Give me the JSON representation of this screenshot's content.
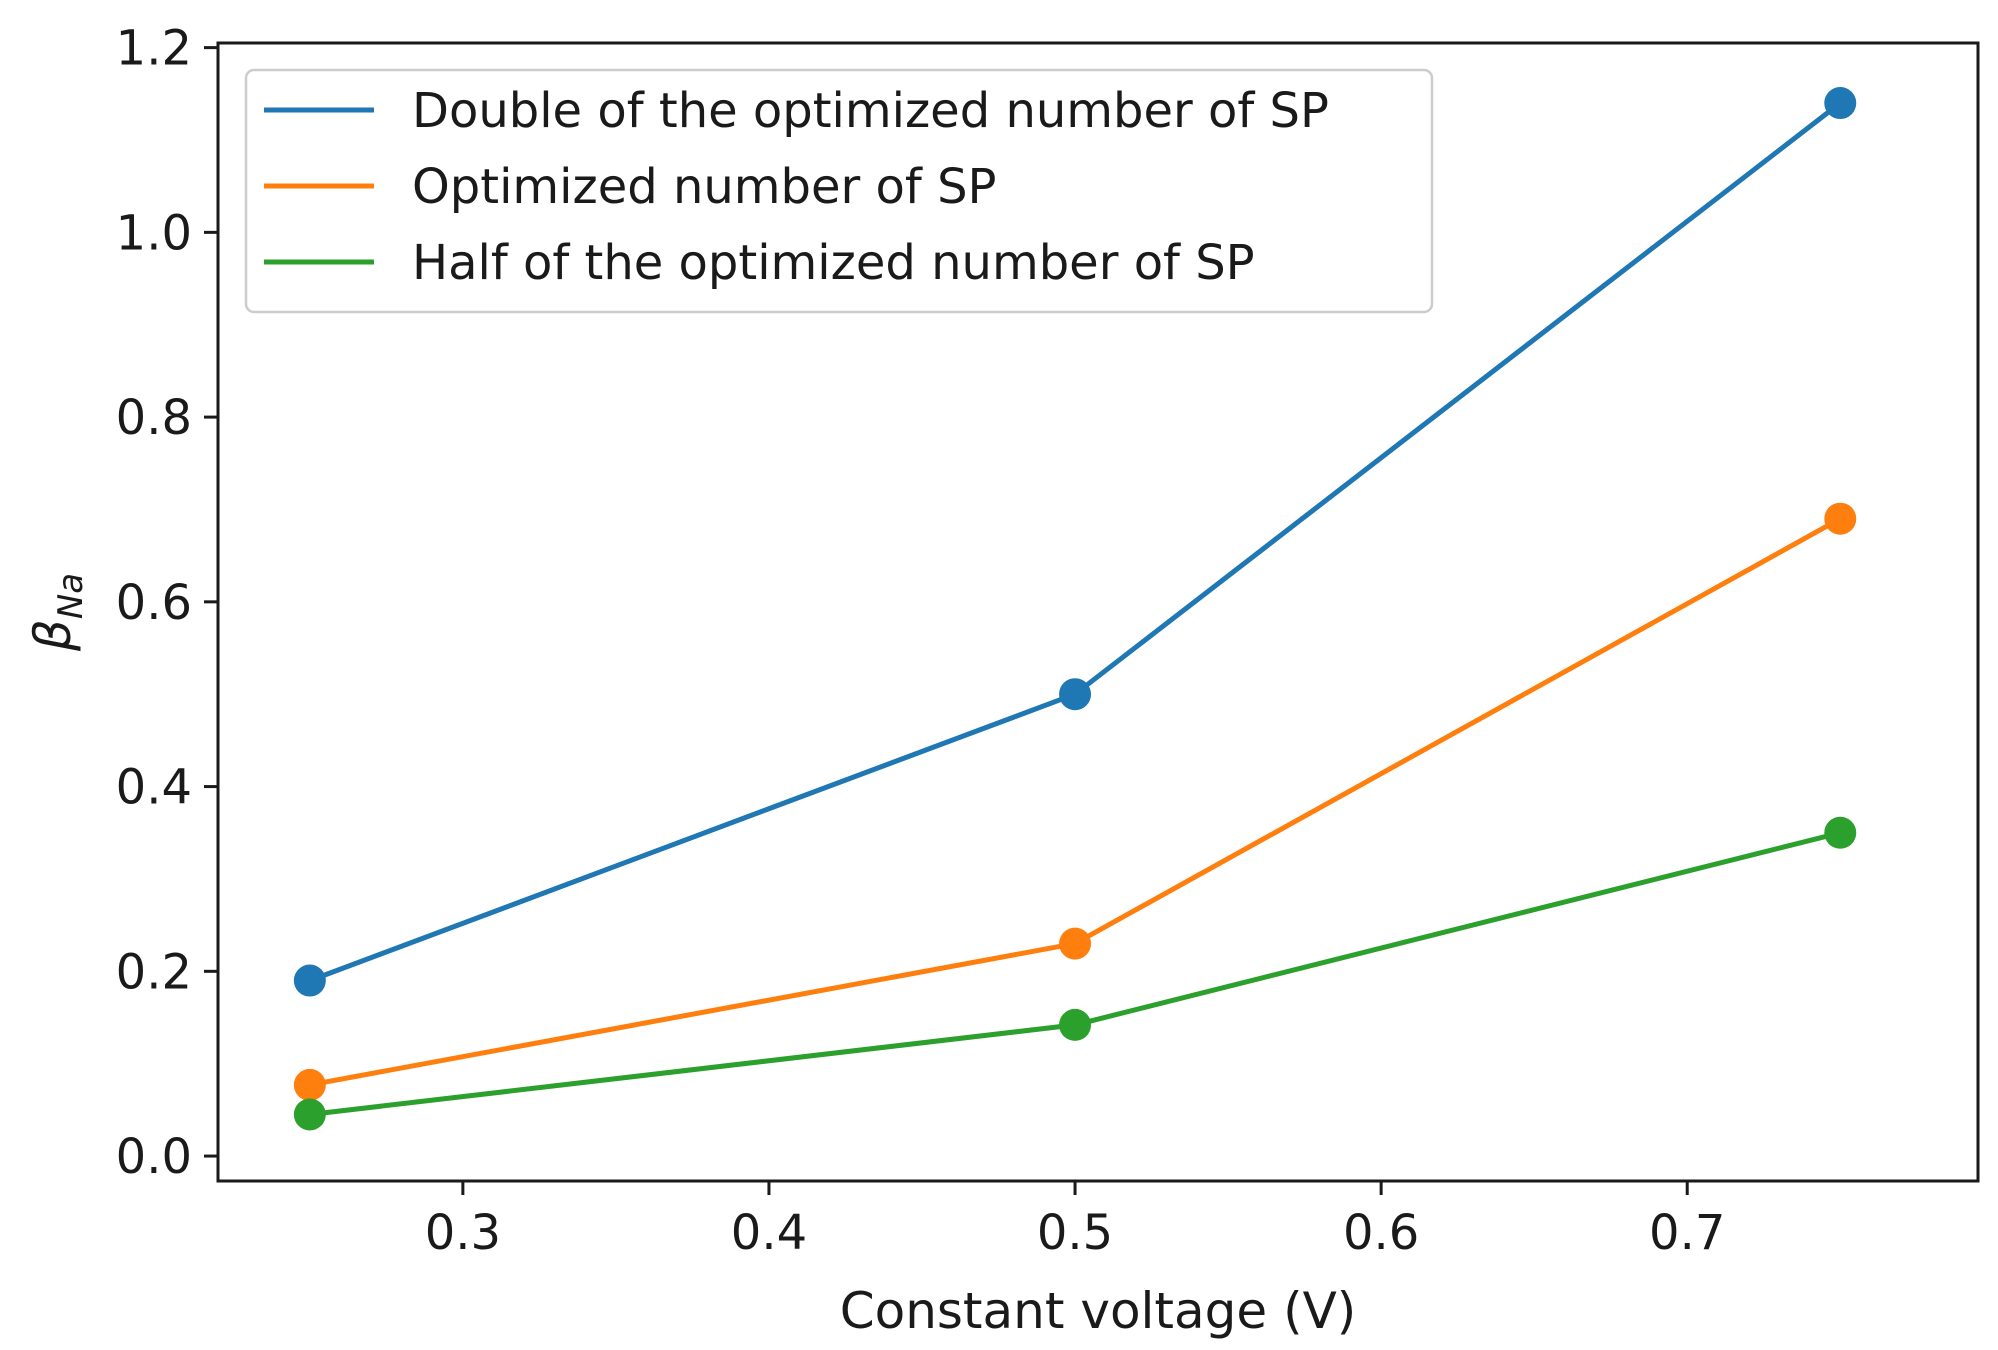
{
  "chart_data": {
    "type": "line",
    "title": "",
    "xlabel": "Constant voltage (V)",
    "ylabel_main": "β",
    "ylabel_sub": "Na",
    "x": [
      0.25,
      0.5,
      0.75
    ],
    "xlim": [
      0.22,
      0.795
    ],
    "ylim": [
      -0.027,
      1.205
    ],
    "xticks": [
      0.3,
      0.4,
      0.5,
      0.6,
      0.7
    ],
    "xtick_labels": [
      "0.3",
      "0.4",
      "0.5",
      "0.6",
      "0.7"
    ],
    "yticks": [
      0.0,
      0.2,
      0.4,
      0.6,
      0.8,
      1.0,
      1.2
    ],
    "ytick_labels": [
      "0.0",
      "0.2",
      "0.4",
      "0.6",
      "0.8",
      "1.0",
      "1.2"
    ],
    "grid": false,
    "legend_position": "top-left",
    "series": [
      {
        "name": "Double of the optimized number of SP",
        "color": "#1f77b4",
        "values": [
          0.19,
          0.5,
          1.14
        ]
      },
      {
        "name": "Optimized number of SP",
        "color": "#ff7f0e",
        "values": [
          0.077,
          0.23,
          0.69
        ]
      },
      {
        "name": "Half of the optimized number of SP",
        "color": "#2ca02c",
        "values": [
          0.045,
          0.142,
          0.35
        ]
      }
    ]
  }
}
